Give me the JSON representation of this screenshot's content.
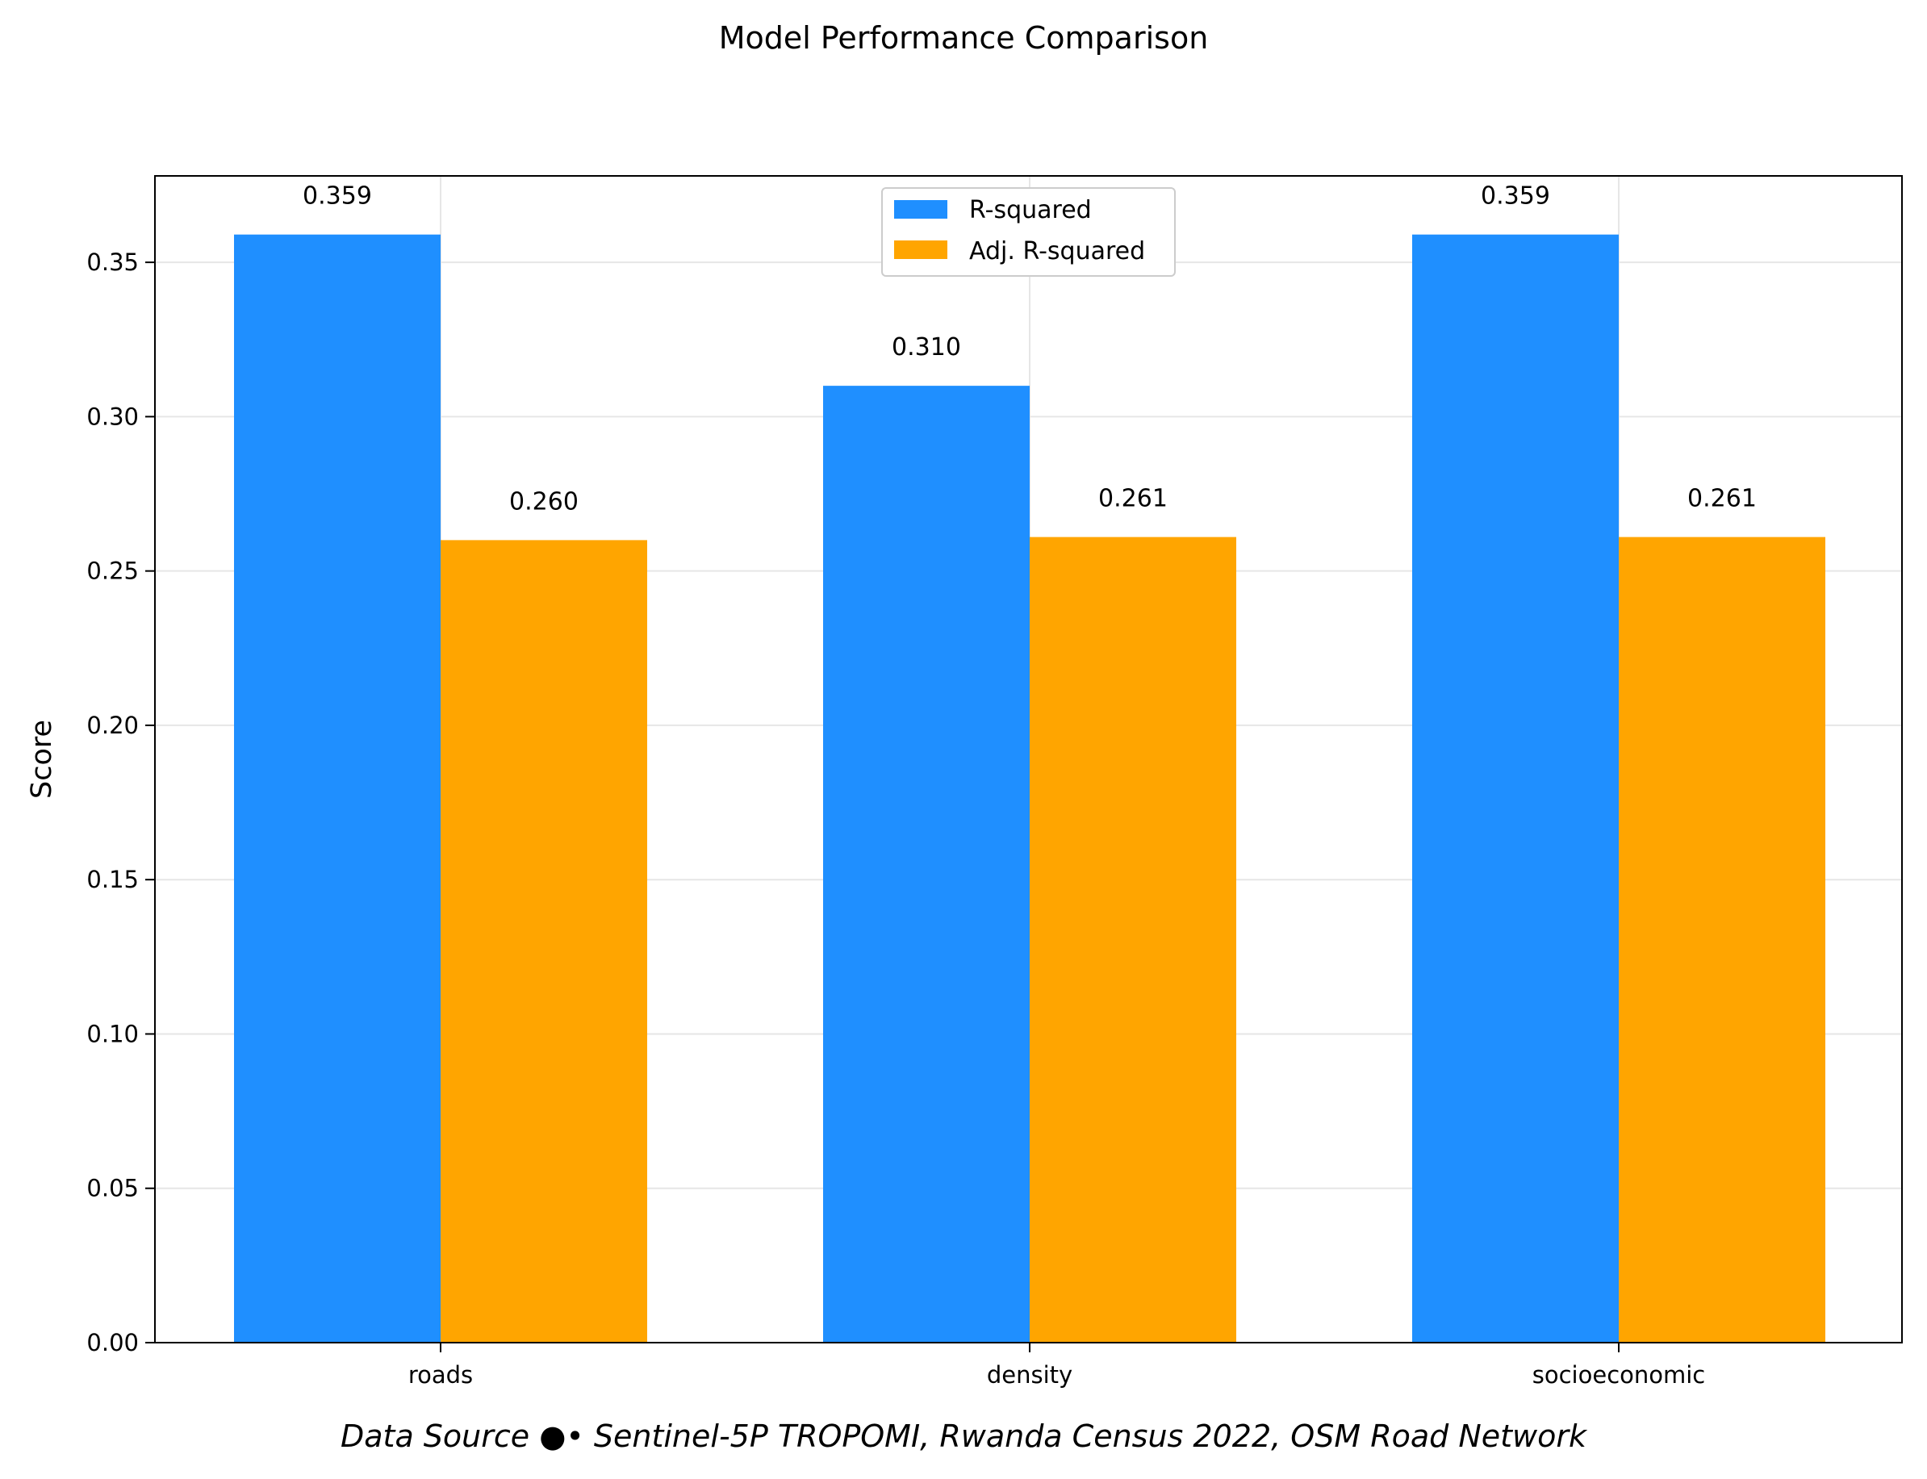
{
  "chart_data": {
    "type": "bar",
    "title": "Model Performance Comparison",
    "xlabel": "",
    "ylabel": "Score",
    "categories": [
      "roads",
      "density",
      "socioeconomic"
    ],
    "series": [
      {
        "name": "R-squared",
        "color": "#1f8fff",
        "values": [
          0.359,
          0.31,
          0.359
        ],
        "labels": [
          "0.359",
          "0.310",
          "0.359"
        ]
      },
      {
        "name": "Adj. R-squared",
        "color": "#ffa500",
        "values": [
          0.26,
          0.261,
          0.261
        ],
        "labels": [
          "0.260",
          "0.261",
          "0.261"
        ]
      }
    ],
    "ylim": [
      0,
      0.378
    ],
    "yticks": [
      "0.00",
      "0.05",
      "0.10",
      "0.15",
      "0.20",
      "0.25",
      "0.30",
      "0.35"
    ],
    "grid": true,
    "legend_position": "top-center"
  },
  "footer": "Data Source ●• Sentinel-5P TROPOMI, Rwanda Census 2022, OSM Road Network"
}
